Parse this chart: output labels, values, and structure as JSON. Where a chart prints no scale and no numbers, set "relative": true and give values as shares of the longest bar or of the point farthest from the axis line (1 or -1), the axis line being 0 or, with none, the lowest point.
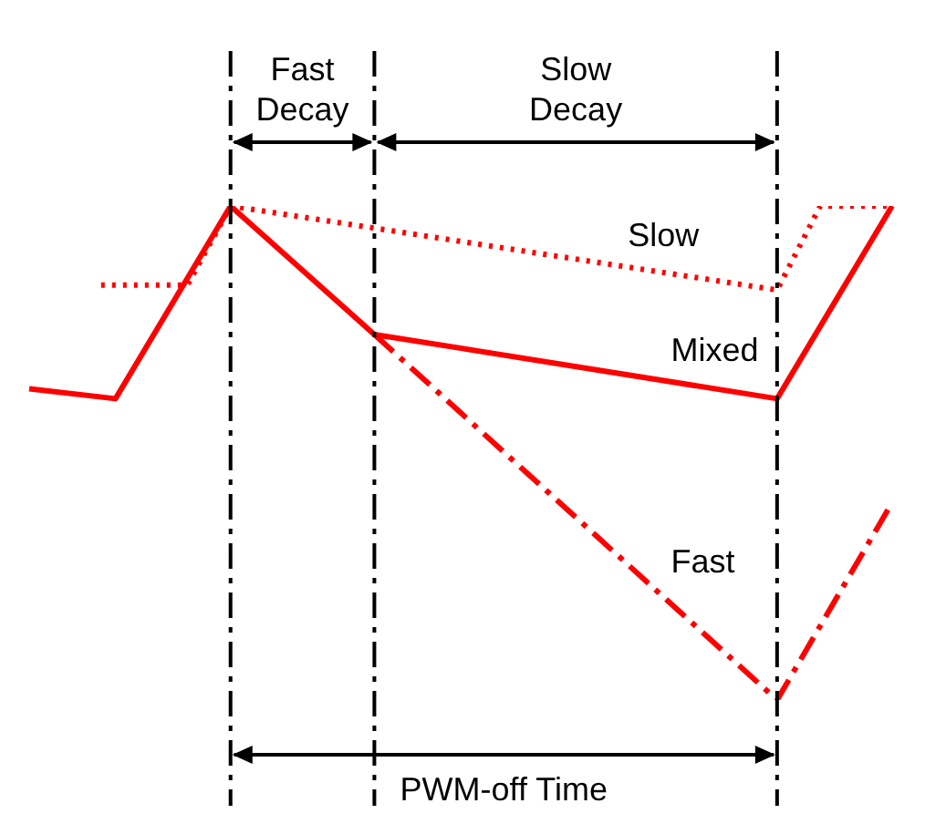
{
  "chart_data": {
    "type": "line",
    "relative": true,
    "legend": false,
    "tick_labels": false,
    "grid": "x",
    "categories": [
      null,
      null,
      null,
      null,
      null,
      null,
      null,
      null,
      null,
      null,
      null,
      null,
      null,
      null,
      null,
      null,
      null,
      null,
      null,
      null,
      null,
      null,
      null,
      null,
      null,
      null,
      null,
      null,
      null,
      null,
      null,
      null,
      null,
      null,
      null,
      null,
      null,
      null,
      null,
      null,
      null,
      null,
      null,
      null,
      null,
      null,
      null,
      null,
      null,
      null,
      null,
      null,
      null,
      null,
      null,
      null,
      null,
      null,
      null,
      null,
      null
    ],
    "series": [
      {
        "name": "Slow",
        "color": "#ff0000",
        "line_style": "dotted",
        "values": [
          null,
          null,
          null,
          null,
          null,
          0.84,
          null,
          null,
          null,
          null,
          null,
          0.84,
          null,
          null,
          1,
          null,
          null,
          null,
          null,
          null,
          null,
          null,
          null,
          null,
          null,
          null,
          null,
          null,
          null,
          null,
          null,
          null,
          null,
          null,
          null,
          null,
          null,
          null,
          null,
          null,
          null,
          null,
          null,
          null,
          null,
          null,
          null,
          null,
          null,
          null,
          null,
          null,
          0.83,
          null,
          null,
          1,
          null,
          null,
          null,
          null,
          1
        ]
      },
      {
        "name": "Mixed",
        "color": "#ff0000",
        "line_style": "solid",
        "values": [
          0.63,
          null,
          null,
          null,
          null,
          null,
          0.61,
          null,
          null,
          null,
          null,
          null,
          null,
          null,
          1,
          null,
          null,
          null,
          null,
          null,
          null,
          null,
          null,
          null,
          0.74,
          null,
          null,
          null,
          null,
          null,
          null,
          null,
          null,
          null,
          null,
          null,
          null,
          null,
          null,
          null,
          null,
          null,
          null,
          null,
          null,
          null,
          null,
          null,
          null,
          null,
          null,
          null,
          0.61,
          null,
          null,
          null,
          null,
          null,
          null,
          null,
          1
        ]
      },
      {
        "name": "Fast",
        "color": "#ff0000",
        "line_style": "dashed",
        "values": [
          null,
          null,
          null,
          null,
          null,
          null,
          null,
          null,
          null,
          null,
          null,
          null,
          null,
          null,
          null,
          null,
          null,
          null,
          null,
          null,
          null,
          null,
          null,
          null,
          0.74,
          null,
          null,
          null,
          null,
          null,
          null,
          null,
          null,
          null,
          null,
          null,
          null,
          null,
          null,
          null,
          null,
          null,
          null,
          null,
          null,
          null,
          null,
          null,
          null,
          null,
          null,
          null,
          0,
          null,
          null,
          null,
          null,
          null,
          null,
          null,
          0.4
        ]
      }
    ],
    "annotations": [
      "Fast Decay",
      "Slow Decay",
      "PWM-off Time"
    ]
  }
}
